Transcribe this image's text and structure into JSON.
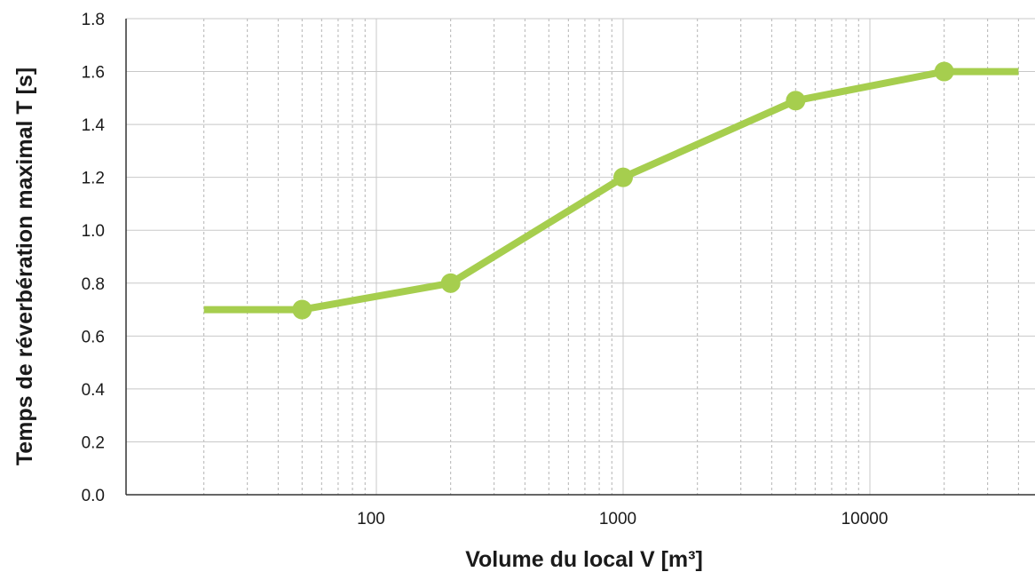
{
  "chart_data": {
    "type": "line",
    "xscale": "log",
    "xlabel": "Volume du local V [m³]",
    "ylabel": "Temps de réverbération maximal T [s]",
    "xlim": [
      10,
      40000
    ],
    "ylim": [
      0,
      1.8
    ],
    "x_ticks": [
      100,
      1000,
      10000
    ],
    "x_tick_labels": [
      "100",
      "1000",
      "10000"
    ],
    "y_ticks": [
      0,
      0.2,
      0.4,
      0.6,
      0.8,
      1.0,
      1.2,
      1.4,
      1.6,
      1.8
    ],
    "y_tick_labels": [
      "0.0",
      "0.2",
      "0.4",
      "0.6",
      "0.8",
      "1.0",
      "1.2",
      "1.4",
      "1.6",
      "1.8"
    ],
    "grid": true,
    "series": [
      {
        "x": [
          20,
          50,
          200,
          1000,
          5000,
          20000,
          40000
        ],
        "y": [
          0.7,
          0.7,
          0.8,
          1.2,
          1.49,
          1.6,
          1.6
        ],
        "markers": [
          false,
          true,
          true,
          true,
          true,
          true,
          false
        ],
        "color": "#a6ce4e"
      }
    ],
    "colors": {
      "line": "#a6ce4e",
      "grid_major": "#c8c8c8",
      "grid_minor": "#b4b4b4",
      "axis": "#333333"
    }
  }
}
